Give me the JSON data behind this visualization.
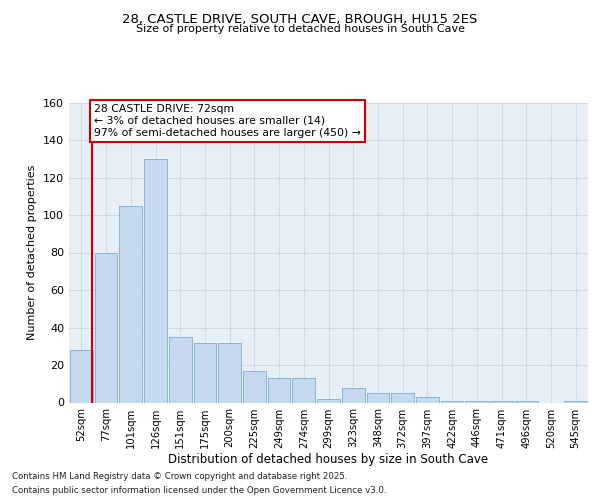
{
  "title1": "28, CASTLE DRIVE, SOUTH CAVE, BROUGH, HU15 2ES",
  "title2": "Size of property relative to detached houses in South Cave",
  "xlabel": "Distribution of detached houses by size in South Cave",
  "ylabel": "Number of detached properties",
  "categories": [
    "52sqm",
    "77sqm",
    "101sqm",
    "126sqm",
    "151sqm",
    "175sqm",
    "200sqm",
    "225sqm",
    "249sqm",
    "274sqm",
    "299sqm",
    "323sqm",
    "348sqm",
    "372sqm",
    "397sqm",
    "422sqm",
    "446sqm",
    "471sqm",
    "496sqm",
    "520sqm",
    "545sqm"
  ],
  "values": [
    28,
    80,
    105,
    130,
    35,
    32,
    32,
    17,
    13,
    13,
    2,
    8,
    5,
    5,
    3,
    1,
    1,
    1,
    1,
    0,
    1
  ],
  "bar_color": "#c5d8ee",
  "bar_edge_color": "#7aadd4",
  "grid_color": "#d0d8e4",
  "bg_color": "#e8eef5",
  "annotation_box_text": "28 CASTLE DRIVE: 72sqm\n← 3% of detached houses are smaller (14)\n97% of semi-detached houses are larger (450) →",
  "vline_color": "#cc0000",
  "annotation_box_color": "#ffffff",
  "annotation_box_edge_color": "#cc0000",
  "footer1": "Contains HM Land Registry data © Crown copyright and database right 2025.",
  "footer2": "Contains public sector information licensed under the Open Government Licence v3.0.",
  "ylim": [
    0,
    160
  ],
  "yticks": [
    0,
    20,
    40,
    60,
    80,
    100,
    120,
    140,
    160
  ]
}
